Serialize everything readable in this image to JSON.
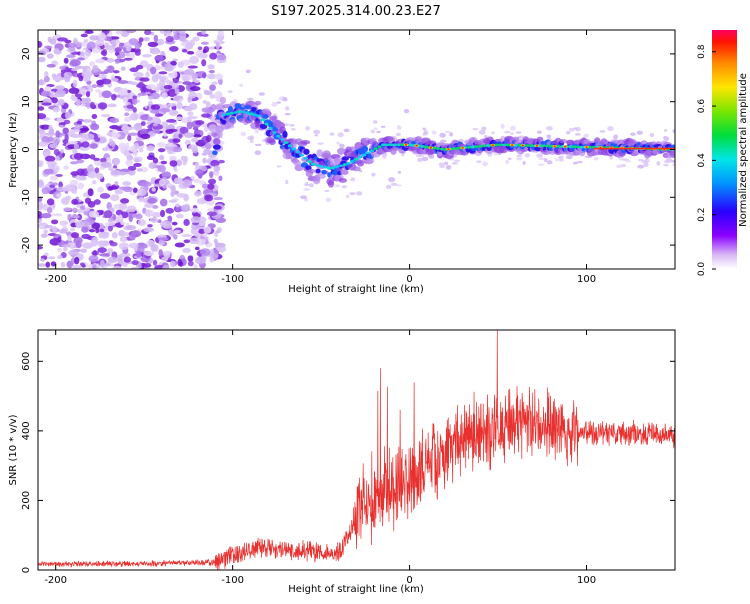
{
  "title": "S197.2025.314.00.23.E27",
  "chart_data": [
    {
      "type": "heatmap",
      "name": "spectrogram",
      "xlabel": "Height of straight line (km)",
      "ylabel": "Frequency (Hz)",
      "xlim": [
        -210,
        150
      ],
      "ylim": [
        -25,
        25
      ],
      "xticks": [
        -200,
        -100,
        0,
        100
      ],
      "xtick_labels": [
        "-200",
        "-100",
        "0",
        "100"
      ],
      "yticks": [
        -20,
        -10,
        0,
        10,
        20
      ],
      "ytick_labels": [
        "-20",
        "-10",
        "0",
        "10",
        "20"
      ],
      "colorbar": {
        "label": "Normalized spectral amplitude",
        "range": [
          0.0,
          0.88
        ],
        "ticks": [
          0.0,
          0.2,
          0.4,
          0.6,
          0.8
        ],
        "tick_labels": [
          "0.0",
          "0.2",
          "0.4",
          "0.6",
          "0.8"
        ],
        "colormap": "rainbow"
      },
      "features": {
        "noise_region_x": [
          -210,
          -110
        ],
        "signal_track": [
          {
            "x": -108,
            "freq": 7
          },
          {
            "x": -95,
            "freq": 8
          },
          {
            "x": -85,
            "freq": 7
          },
          {
            "x": -75,
            "freq": 3
          },
          {
            "x": -65,
            "freq": 0
          },
          {
            "x": -55,
            "freq": -3
          },
          {
            "x": -45,
            "freq": -4
          },
          {
            "x": -35,
            "freq": -3
          },
          {
            "x": -25,
            "freq": -1
          },
          {
            "x": -15,
            "freq": 1
          },
          {
            "x": 0,
            "freq": 1
          },
          {
            "x": 20,
            "freq": 0
          },
          {
            "x": 50,
            "freq": 1
          },
          {
            "x": 100,
            "freq": 0.5
          },
          {
            "x": 150,
            "freq": 0
          }
        ]
      }
    },
    {
      "type": "line",
      "name": "snr",
      "xlabel": "Height of straight line (km)",
      "ylabel": "SNR (10 * v/v)",
      "xlim": [
        -210,
        150
      ],
      "ylim": [
        0,
        690
      ],
      "xticks": [
        -200,
        -100,
        0,
        100
      ],
      "xtick_labels": [
        "-200",
        "-100",
        "0",
        "100"
      ],
      "yticks": [
        0,
        200,
        400,
        600
      ],
      "ytick_labels": [
        "0",
        "200",
        "400",
        "600"
      ],
      "color": "#e8302e",
      "envelope": [
        {
          "x": -210,
          "y": 18
        },
        {
          "x": -150,
          "y": 18
        },
        {
          "x": -110,
          "y": 22
        },
        {
          "x": -100,
          "y": 45
        },
        {
          "x": -85,
          "y": 70
        },
        {
          "x": -70,
          "y": 60
        },
        {
          "x": -55,
          "y": 55
        },
        {
          "x": -40,
          "y": 48
        },
        {
          "x": -32,
          "y": 120
        },
        {
          "x": -28,
          "y": 190
        },
        {
          "x": -15,
          "y": 230
        },
        {
          "x": 0,
          "y": 260
        },
        {
          "x": 15,
          "y": 320
        },
        {
          "x": 30,
          "y": 380
        },
        {
          "x": 45,
          "y": 400
        },
        {
          "x": 60,
          "y": 420
        },
        {
          "x": 75,
          "y": 410
        },
        {
          "x": 90,
          "y": 400
        },
        {
          "x": 110,
          "y": 395
        },
        {
          "x": 130,
          "y": 390
        },
        {
          "x": 150,
          "y": 392
        }
      ]
    }
  ]
}
